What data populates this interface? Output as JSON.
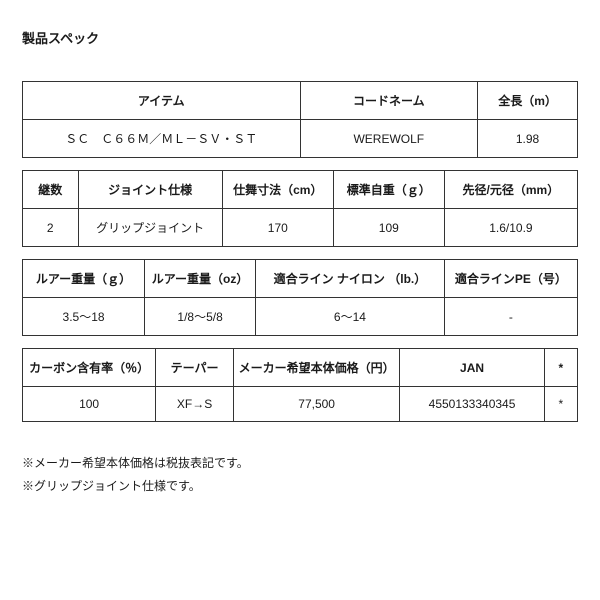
{
  "title": "製品スペック",
  "tables": [
    {
      "class": "t1",
      "cols": 3,
      "headers": [
        "アイテム",
        "コードネーム",
        "全長（m）"
      ],
      "rows": [
        [
          "ＳＣ　Ｃ６６Ｍ／ＭＬ－ＳＶ・ＳＴ",
          "WEREWOLF",
          "1.98"
        ]
      ]
    },
    {
      "class": "t2",
      "cols": 5,
      "headers": [
        "継数",
        "ジョイント仕様",
        "仕舞寸法（cm）",
        "標準自重（ｇ）",
        "先径/元径（mm）"
      ],
      "rows": [
        [
          "2",
          "グリップジョイント",
          "170",
          "109",
          "1.6/10.9"
        ]
      ]
    },
    {
      "class": "t3",
      "cols": 4,
      "headers": [
        "ルアー重量（ｇ）",
        "ルアー重量（oz）",
        "適合ライン ナイロン （lb.）",
        "適合ラインPE（号）"
      ],
      "rows": [
        [
          "3.5～18",
          "1/8～5/8",
          "6～14",
          "-"
        ]
      ]
    },
    {
      "class": "t4",
      "cols": 5,
      "headers": [
        "カーボン含有率（％）",
        "テーパー",
        "メーカー希望本体価格（円）",
        "JAN",
        "*"
      ],
      "rows": [
        [
          "100",
          "XF→S",
          "77,500",
          "4550133340345",
          "*"
        ]
      ]
    }
  ],
  "notes": [
    "※メーカー希望本体価格は税抜表記です。",
    "※グリップジョイント仕様です。"
  ],
  "style": {
    "border_color": "#333333",
    "background_color": "#ffffff",
    "text_color": "#1a1a1a",
    "font_size_body": 12,
    "font_size_title": 13
  }
}
